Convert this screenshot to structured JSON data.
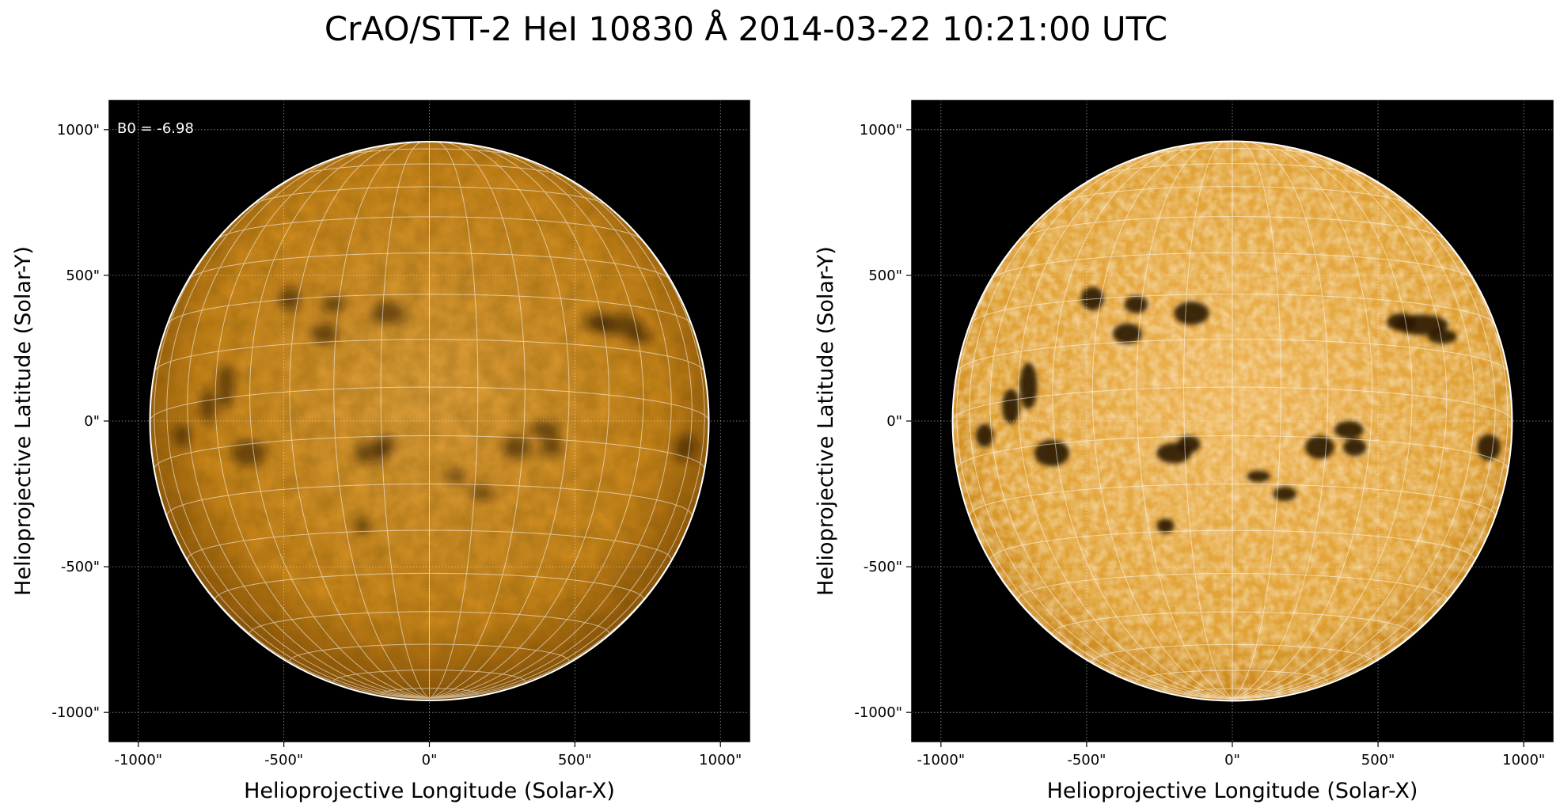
{
  "figure": {
    "title": "CrAO/STT-2 HeI 10830 Å 2014-03-22 10:21:00 UTC",
    "colors": {
      "background": "#000000",
      "disk_mid": "#d48c18",
      "disk_light": "#f5c36a",
      "disk_dark": "#2a1600",
      "grid": "#ffffff"
    }
  },
  "panels": [
    {
      "id": "left",
      "annotation": "B0 = -6.98",
      "xlabel": "Helioprojective Longitude (Solar-X)",
      "ylabel": "Helioprojective Latitude (Solar-Y)",
      "xticks": [
        "-1000\"",
        "-500\"",
        "0\"",
        "500\"",
        "1000\""
      ],
      "yticks": [
        "1000\"",
        "500\"",
        "0\"",
        "-500\"",
        "-1000\""
      ],
      "tick_values": [
        -1000,
        -500,
        0,
        500,
        1000
      ],
      "axis_range_arcsec": [
        -1100,
        1100
      ],
      "disk_radius_arcsec": 960,
      "contrast": "normal"
    },
    {
      "id": "right",
      "annotation": "",
      "xlabel": "Helioprojective Longitude (Solar-X)",
      "ylabel": "Helioprojective Latitude (Solar-Y)",
      "xticks": [
        "-1000\"",
        "-500\"",
        "0\"",
        "500\"",
        "1000\""
      ],
      "yticks": [
        "1000\"",
        "500\"",
        "0\"",
        "-500\"",
        "-1000\""
      ],
      "tick_values": [
        -1000,
        -500,
        0,
        500,
        1000
      ],
      "axis_range_arcsec": [
        -1100,
        1100
      ],
      "disk_radius_arcsec": 960,
      "contrast": "enhanced"
    }
  ]
}
